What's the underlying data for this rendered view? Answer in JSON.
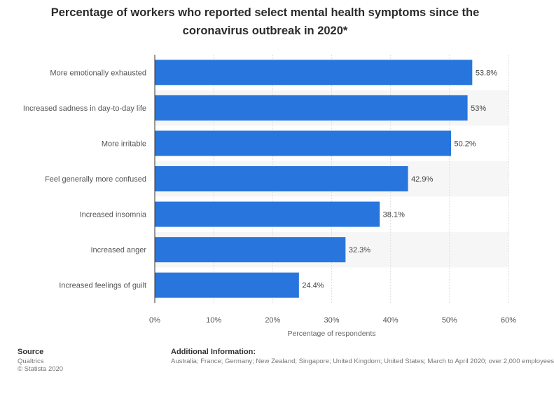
{
  "title": "Percentage of workers who reported select mental health symptoms since the coronavirus outbreak in 2020*",
  "chart_data": {
    "type": "bar",
    "orientation": "horizontal",
    "categories": [
      "More emotionally exhausted",
      "Increased sadness in day-to-day life",
      "More irritable",
      "Feel generally more confused",
      "Increased insomnia",
      "Increased anger",
      "Increased feelings of guilt"
    ],
    "values": [
      53.8,
      53,
      50.2,
      42.9,
      38.1,
      32.3,
      24.4
    ],
    "value_labels": [
      "53.8%",
      "53%",
      "50.2%",
      "42.9%",
      "38.1%",
      "32.3%",
      "24.4%"
    ],
    "xlabel": "Percentage of respondents",
    "xlim": [
      0,
      60
    ],
    "xticks": [
      0,
      10,
      20,
      30,
      40,
      50,
      60
    ],
    "xtick_labels": [
      "0%",
      "10%",
      "20%",
      "30%",
      "40%",
      "50%",
      "60%"
    ],
    "grid": true,
    "bar_color": "#2876dd"
  },
  "footer": {
    "source_heading": "Source",
    "source_name": "Qualtrics",
    "copyright": "© Statista 2020",
    "info_heading": "Additional Information:",
    "info_text": "Australia; France; Germany; New Zealand; Singapore; United Kingdom; United States; March to April 2020; over 2,000 employees"
  }
}
